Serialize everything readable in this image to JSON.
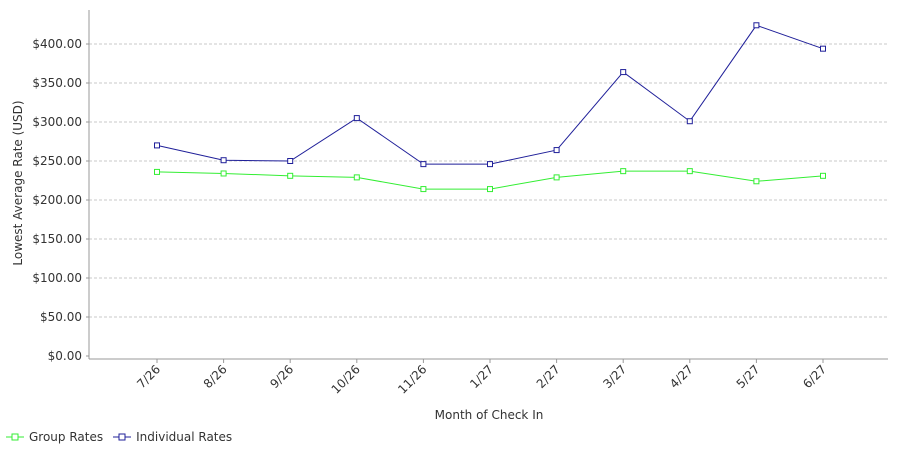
{
  "chart_data": {
    "type": "line",
    "title": "",
    "xlabel": "Month of Check In",
    "ylabel": "Lowest Average Rate (USD)",
    "categories": [
      "7/26",
      "8/26",
      "9/26",
      "10/26",
      "11/26",
      "1/27",
      "2/27",
      "3/27",
      "4/27",
      "5/27",
      "6/27"
    ],
    "ylim": [
      0,
      400
    ],
    "yticks": [
      "$0.00",
      "$50.00",
      "$100.00",
      "$150.00",
      "$200.00",
      "$250.00",
      "$300.00",
      "$350.00",
      "$400.00"
    ],
    "grid": true,
    "legend_position": "bottom-left",
    "series": [
      {
        "name": "Group Rates",
        "color": "#33ee33",
        "values": [
          236,
          234,
          231,
          229,
          214,
          214,
          229,
          237,
          237,
          224,
          231
        ]
      },
      {
        "name": "Individual Rates",
        "color": "#1f1f99",
        "values": [
          270,
          251,
          250,
          305,
          246,
          246,
          264,
          364,
          301,
          424,
          394
        ]
      }
    ]
  }
}
